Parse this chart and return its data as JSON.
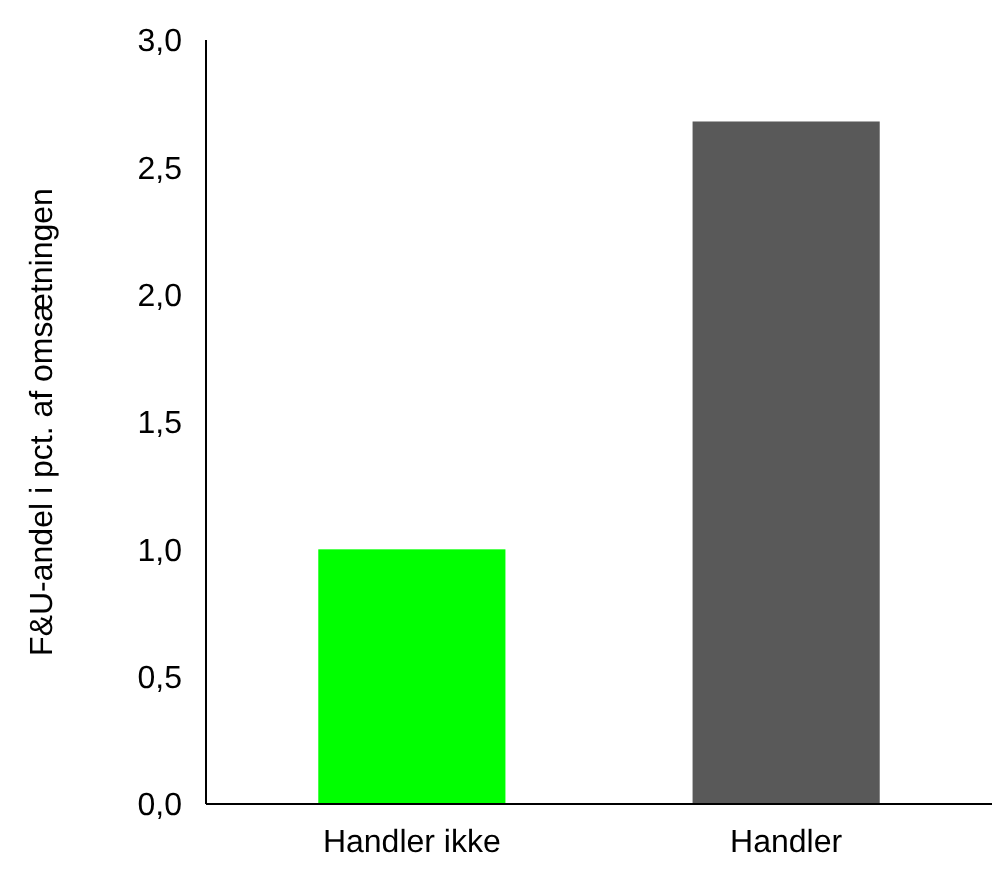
{
  "chart_data": {
    "type": "bar",
    "ylabel": "F&U-andel i pct. af omsætningen",
    "categories": [
      "Handler ikke",
      "Handler"
    ],
    "values": [
      1.0,
      2.68
    ],
    "colors": [
      "#00ff00",
      "#595959"
    ],
    "ylim": [
      0,
      3
    ],
    "yticks": [
      {
        "value": 0,
        "label": "0,0"
      },
      {
        "value": 0.5,
        "label": "0,5"
      },
      {
        "value": 1,
        "label": "1,0"
      },
      {
        "value": 1.5,
        "label": "1,5"
      },
      {
        "value": 2,
        "label": "2,0"
      },
      {
        "value": 2.5,
        "label": "2,5"
      },
      {
        "value": 3,
        "label": "3,0"
      }
    ],
    "grid": false
  }
}
